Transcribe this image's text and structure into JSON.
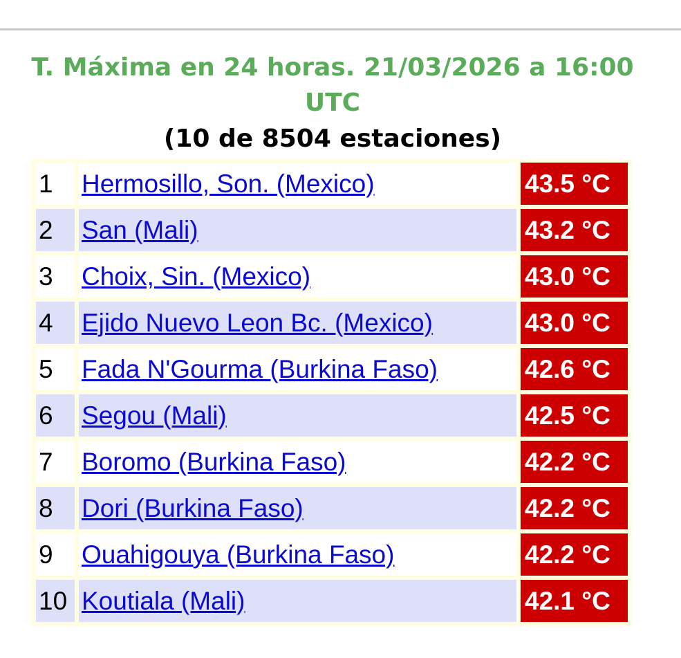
{
  "title": "T. Máxima en 24 horas. 21/03/2026 a 16:00 UTC",
  "subtitle": "(10 de 8504 estaciones)",
  "colors": {
    "title": "#5aac5a",
    "link": "#0a0ad0",
    "temp_bg": "#cc0000",
    "alt_row": "#dde0f8",
    "table_bg": "#fffde2"
  },
  "rows": [
    {
      "rank": "1",
      "station": "Hermosillo, Son. (Mexico)",
      "temp": "43.5 °C"
    },
    {
      "rank": "2",
      "station": "San (Mali)",
      "temp": "43.2 °C"
    },
    {
      "rank": "3",
      "station": "Choix, Sin. (Mexico)",
      "temp": "43.0 °C"
    },
    {
      "rank": "4",
      "station": "Ejido Nuevo Leon Bc. (Mexico)",
      "temp": "43.0 °C"
    },
    {
      "rank": "5",
      "station": "Fada N'Gourma (Burkina Faso)",
      "temp": "42.6 °C"
    },
    {
      "rank": "6",
      "station": "Segou (Mali)",
      "temp": "42.5 °C"
    },
    {
      "rank": "7",
      "station": "Boromo (Burkina Faso)",
      "temp": "42.2 °C"
    },
    {
      "rank": "8",
      "station": "Dori (Burkina Faso)",
      "temp": "42.2 °C"
    },
    {
      "rank": "9",
      "station": "Ouahigouya (Burkina Faso)",
      "temp": "42.2 °C"
    },
    {
      "rank": "10",
      "station": "Koutiala (Mali)",
      "temp": "42.1 °C"
    }
  ]
}
